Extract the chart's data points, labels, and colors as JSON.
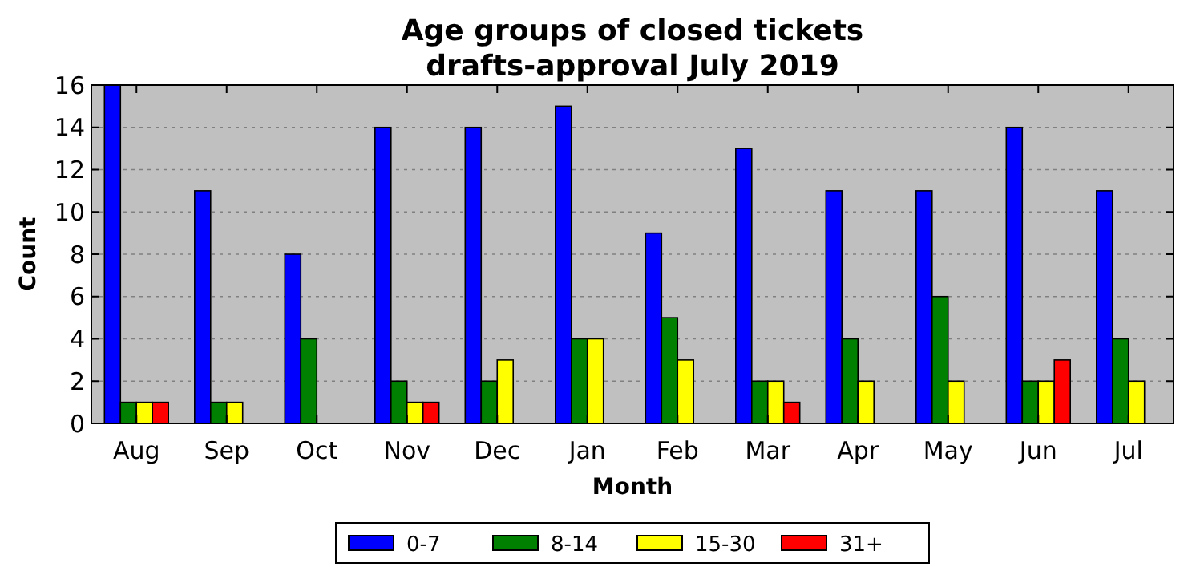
{
  "chart_data": {
    "type": "bar",
    "title": "Age groups of closed tickets",
    "subtitle": "drafts-approval July 2019",
    "xlabel": "Month",
    "ylabel": "Count",
    "categories": [
      "Aug",
      "Sep",
      "Oct",
      "Nov",
      "Dec",
      "Jan",
      "Feb",
      "Mar",
      "Apr",
      "May",
      "Jun",
      "Jul"
    ],
    "series": [
      {
        "name": "0-7",
        "color": "#0000ff",
        "values": [
          16,
          11,
          8,
          14,
          14,
          15,
          9,
          13,
          11,
          11,
          14,
          11
        ]
      },
      {
        "name": "8-14",
        "color": "#008000",
        "values": [
          1,
          1,
          4,
          2,
          2,
          4,
          5,
          2,
          4,
          6,
          2,
          4
        ]
      },
      {
        "name": "15-30",
        "color": "#ffff00",
        "values": [
          1,
          1,
          0,
          1,
          3,
          4,
          3,
          2,
          2,
          2,
          2,
          2
        ]
      },
      {
        "name": "31+",
        "color": "#ff0000",
        "values": [
          1,
          0,
          0,
          1,
          0,
          0,
          0,
          1,
          0,
          0,
          3,
          0
        ]
      }
    ],
    "ylim": [
      0,
      16
    ],
    "yticks": [
      0,
      2,
      4,
      6,
      8,
      10,
      12,
      14,
      16
    ],
    "grid": "y",
    "legend": "bottom"
  }
}
